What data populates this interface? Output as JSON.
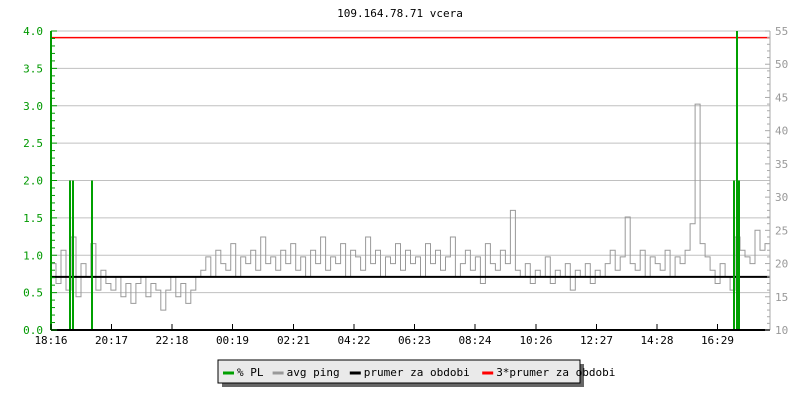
{
  "chart_data": {
    "type": "line",
    "title": "109.164.78.71 vcera",
    "xlim": [
      "18:16",
      "18:14"
    ],
    "x_ticks": [
      "18:16",
      "20:17",
      "22:18",
      "00:19",
      "02:21",
      "04:22",
      "06:23",
      "08:24",
      "10:26",
      "12:27",
      "14:28",
      "16:29"
    ],
    "y_left": {
      "range": [
        0,
        4.0
      ],
      "ticks": [
        "0.0",
        "0.5",
        "1.0",
        "1.5",
        "2.0",
        "2.5",
        "3.0",
        "3.5",
        "4.0"
      ],
      "color": "#009900"
    },
    "y_right": {
      "range": [
        10,
        55
      ],
      "ticks": [
        "10",
        "15",
        "20",
        "25",
        "30",
        "35",
        "40",
        "45",
        "50",
        "55"
      ],
      "color": "#999999"
    },
    "grid": true,
    "legend_position": "bottom",
    "series": [
      {
        "name": "% PL",
        "axis": "left",
        "color": "#00a000",
        "points": [
          [
            "18:54",
            2.0
          ],
          [
            "19:00",
            2.0
          ],
          [
            "19:38",
            2.0
          ],
          [
            "17:02",
            2.0
          ],
          [
            "17:08",
            4.0
          ],
          [
            "17:12",
            2.0
          ]
        ]
      },
      {
        "name": "avg ping",
        "axis": "right",
        "color": "#999999",
        "values": [
          20,
          17,
          22,
          16,
          24,
          15,
          20,
          18,
          23,
          16,
          19,
          17,
          16,
          18,
          15,
          17,
          14,
          17,
          18,
          15,
          17,
          16,
          13,
          16,
          18,
          15,
          17,
          14,
          16,
          18,
          19,
          21,
          18,
          22,
          20,
          19,
          23,
          18,
          21,
          20,
          22,
          19,
          24,
          20,
          21,
          19,
          22,
          20,
          23,
          19,
          21,
          18,
          22,
          20,
          24,
          19,
          21,
          20,
          23,
          18,
          22,
          21,
          19,
          24,
          20,
          22,
          18,
          21,
          20,
          23,
          19,
          22,
          20,
          21,
          18,
          23,
          20,
          22,
          19,
          21,
          24,
          18,
          20,
          22,
          19,
          21,
          17,
          23,
          20,
          19,
          22,
          20,
          28,
          19,
          18,
          20,
          17,
          19,
          18,
          21,
          17,
          19,
          18,
          20,
          16,
          19,
          18,
          20,
          17,
          19,
          18,
          20,
          22,
          19,
          21,
          27,
          20,
          19,
          22,
          18,
          21,
          20,
          19,
          22,
          18,
          21,
          20,
          22,
          26,
          44,
          23,
          21,
          19,
          17,
          20,
          18,
          16,
          24,
          22,
          21,
          20,
          25,
          22,
          23
        ]
      },
      {
        "name": "prumer za obdobi",
        "axis": "right",
        "color": "#000000",
        "value": 18
      },
      {
        "name": "3*prumer za obdobi",
        "axis": "right",
        "color": "#ff0000",
        "value": 54
      }
    ]
  }
}
